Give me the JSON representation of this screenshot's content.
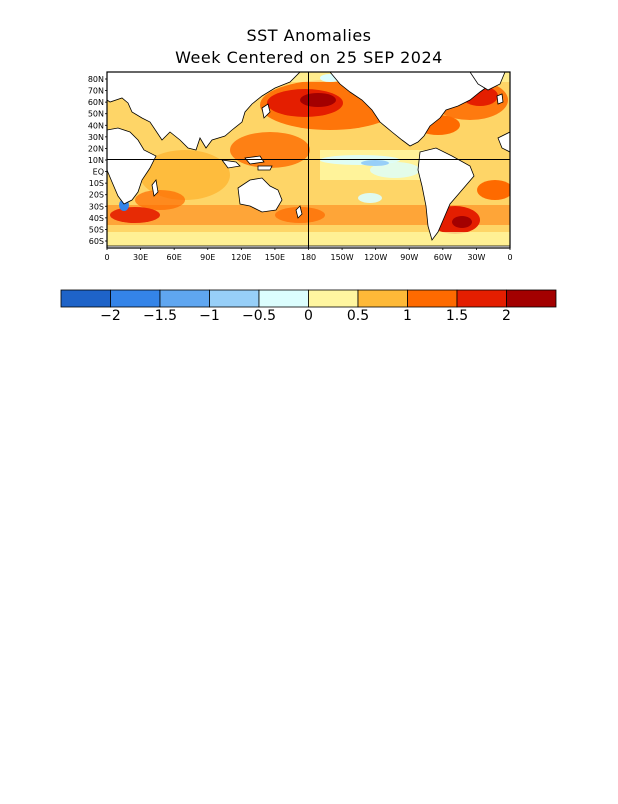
{
  "title": {
    "line1": "SST Anomalies",
    "line2": "Week Centered on 25 SEP 2024"
  },
  "map": {
    "latitude_labels": [
      "80N",
      "70N",
      "60N",
      "50N",
      "40N",
      "30N",
      "20N",
      "10N",
      "EQ",
      "10S",
      "20S",
      "30S",
      "40S",
      "50S",
      "60S"
    ],
    "longitude_labels": [
      "0",
      "30E",
      "60E",
      "90E",
      "120E",
      "150E",
      "180",
      "150W",
      "120W",
      "90W",
      "60W",
      "30W",
      "0"
    ],
    "reference_lines": [
      "EQ",
      "180"
    ]
  },
  "colorbar": {
    "colors": [
      "#1e63c8",
      "#3484e8",
      "#5fa6f0",
      "#97cff8",
      "#dcfefe",
      "#fff6a0",
      "#feb938",
      "#fe6a00",
      "#e41e00",
      "#a30000"
    ],
    "tick_labels": [
      "−2",
      "−1.5",
      "−1",
      "−0.5",
      "0",
      "0.5",
      "1",
      "1.5",
      "2"
    ]
  }
}
